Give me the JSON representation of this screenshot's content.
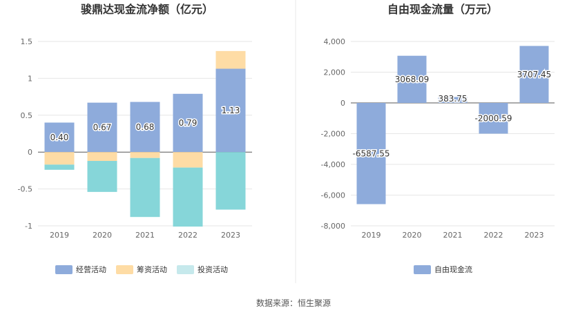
{
  "source": "数据来源：恒生聚源",
  "chart_data": [
    {
      "type": "bar",
      "stacked": true,
      "title": "骏鼎达现金流净额（亿元）",
      "categories": [
        "2019",
        "2020",
        "2021",
        "2022",
        "2023"
      ],
      "ylim": [
        -1,
        1.5
      ],
      "yticks": [
        "1.5",
        "1",
        "0.5",
        "0",
        "-0.5",
        "-1"
      ],
      "ytick_values": [
        1.5,
        1,
        0.5,
        0,
        -0.5,
        -1
      ],
      "legend_position": "bottom",
      "series": [
        {
          "name": "经营活动",
          "color": "#8eabdb",
          "values": [
            0.4,
            0.67,
            0.68,
            0.79,
            1.13
          ],
          "labels": [
            "0.40",
            "0.67",
            "0.68",
            "0.79",
            "1.13"
          ]
        },
        {
          "name": "筹资活动",
          "color": "#fedca5",
          "values": [
            -0.17,
            -0.12,
            -0.08,
            -0.21,
            0.24
          ]
        },
        {
          "name": "投资活动",
          "color": "#86d6d9",
          "values": [
            -0.07,
            -0.42,
            -0.8,
            -0.8,
            -0.78
          ]
        }
      ],
      "legend": [
        {
          "name": "经营活动",
          "color": "#8eabdb"
        },
        {
          "name": "筹资活动",
          "color": "#fedca5"
        },
        {
          "name": "投资活动",
          "color": "#c6e9ec"
        }
      ]
    },
    {
      "type": "bar",
      "title": "自由现金流量（万元）",
      "categories": [
        "2019",
        "2020",
        "2021",
        "2022",
        "2023"
      ],
      "ylim": [
        -8000,
        4000
      ],
      "yticks": [
        "4,000",
        "2,000",
        "0",
        "-2,000",
        "-4,000",
        "-6,000",
        "-8,000"
      ],
      "ytick_values": [
        4000,
        2000,
        0,
        -2000,
        -4000,
        -6000,
        -8000
      ],
      "legend_position": "bottom",
      "series": [
        {
          "name": "自由现金流",
          "color": "#8eabdb",
          "values": [
            -6587.55,
            3068.09,
            383.75,
            -2000.59,
            3707.45
          ],
          "labels": [
            "-6587.55",
            "3068.09",
            "383.75",
            "-2000.59",
            "3707.45"
          ]
        }
      ],
      "legend": [
        {
          "name": "自由现金流",
          "color": "#8eabdb"
        }
      ]
    }
  ]
}
